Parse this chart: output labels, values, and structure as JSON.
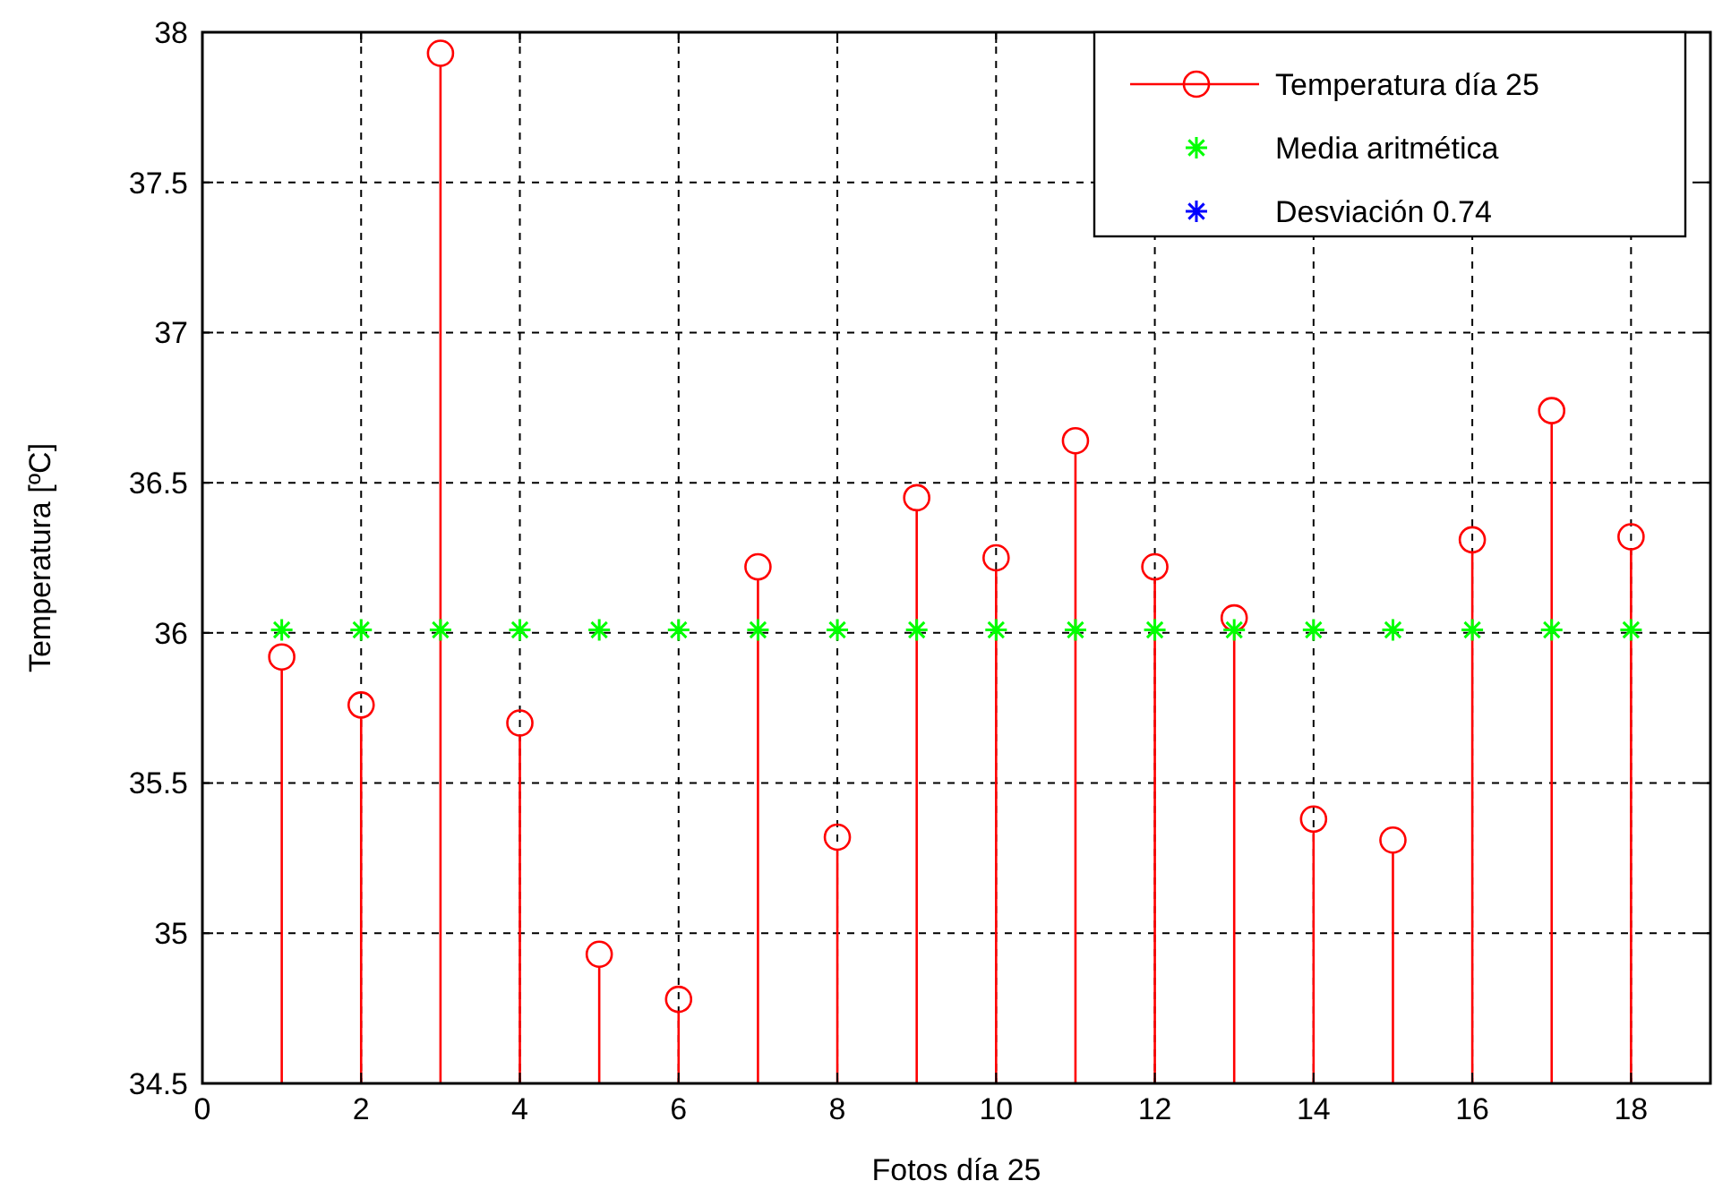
{
  "chart_data": {
    "type": "lollipop",
    "xlabel": "Fotos día 25",
    "ylabel": "Temperatura [ºC]",
    "x": [
      1,
      2,
      3,
      4,
      5,
      6,
      7,
      8,
      9,
      10,
      11,
      12,
      13,
      14,
      15,
      16,
      17,
      18
    ],
    "series": [
      {
        "name": "Temperatura día 25",
        "color": "#ff0000",
        "marker": "circle",
        "values": [
          35.92,
          35.76,
          37.93,
          35.7,
          34.93,
          34.78,
          36.22,
          35.32,
          36.45,
          36.25,
          36.64,
          36.22,
          36.05,
          35.38,
          35.31,
          36.31,
          36.74,
          36.32
        ]
      },
      {
        "name": "Media aritmética",
        "type": "scatter",
        "color": "#00ff00",
        "marker": "cross",
        "values": [
          36.01,
          36.01,
          36.01,
          36.01,
          36.01,
          36.01,
          36.01,
          36.01,
          36.01,
          36.01,
          36.01,
          36.01,
          36.01,
          36.01,
          36.01,
          36.01,
          36.01,
          36.01
        ]
      },
      {
        "name": "Desviación 0.74",
        "type": "scatter",
        "color": "#0000ff",
        "marker": "cross",
        "values": [
          null,
          null,
          null,
          null,
          null,
          null,
          null,
          null,
          null,
          null,
          null,
          null,
          null,
          null,
          null,
          null,
          null,
          null
        ]
      }
    ],
    "xlim": [
      0,
      19
    ],
    "xticks": [
      0,
      2,
      4,
      6,
      8,
      10,
      12,
      14,
      16,
      18
    ],
    "ylim": [
      34.5,
      38
    ],
    "yticks": [
      34.5,
      35,
      35.5,
      36,
      36.5,
      37,
      37.5,
      38
    ],
    "grid": true,
    "legend": "top right"
  }
}
